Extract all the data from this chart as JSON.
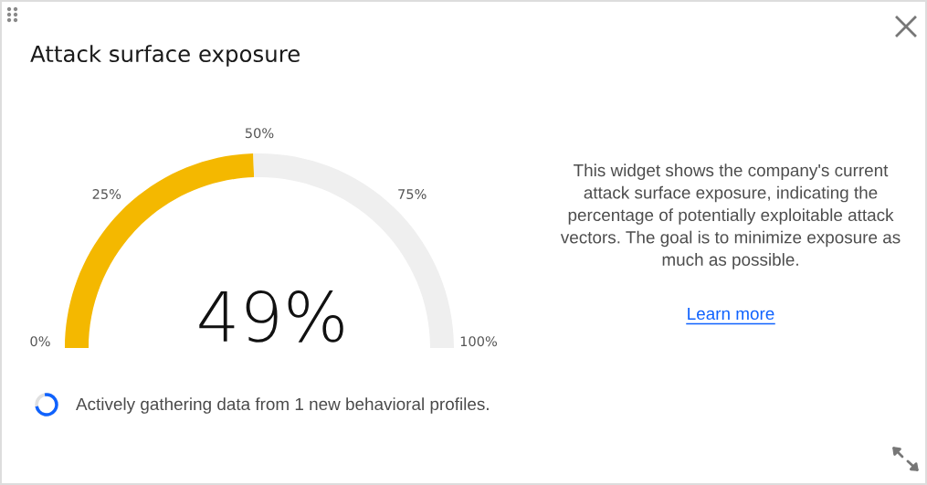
{
  "chart_data": {
    "type": "donut",
    "title": "Attack surface exposure",
    "categories": [
      null,
      null
    ],
    "values": [
      49,
      51
    ],
    "colors": [
      "#f4b800",
      "#efefef"
    ],
    "annotations": [
      "This widget shows the company's current attack surface exposure, indicating the percentage of potentially exploitable attack vectors. The goal is to minimize exposure as much as possible.",
      "Learn more",
      "Actively gathering data from 1 new behavioral profiles.",
      "49%",
      "0%",
      "25%",
      "50%",
      "75%",
      "100%"
    ]
  }
}
